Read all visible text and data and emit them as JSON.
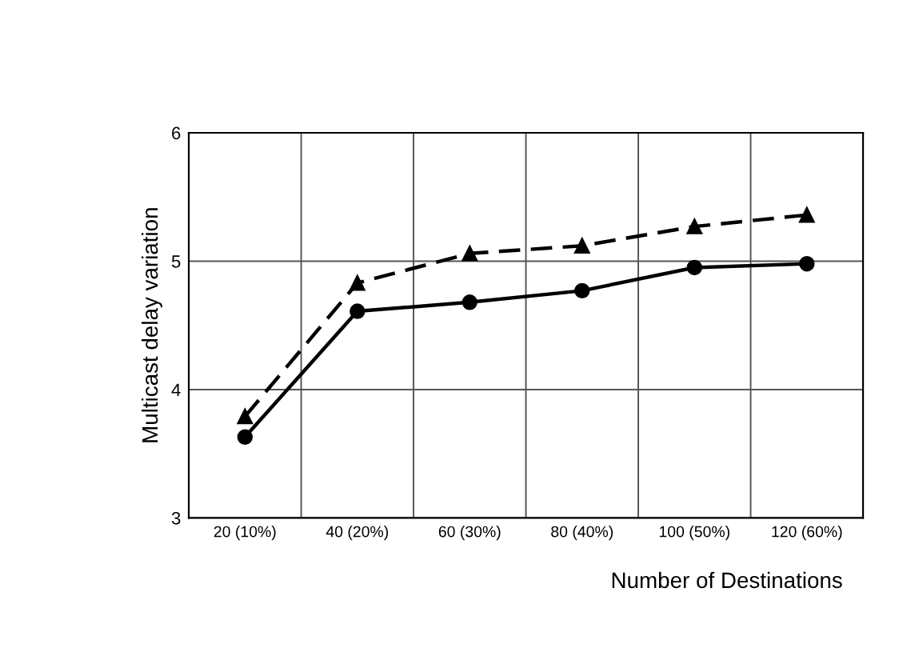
{
  "chart_data": {
    "type": "line",
    "xlabel": "Number of Destinations",
    "ylabel": "Multicast delay variation",
    "categories": [
      "20 (10%)",
      "40 (20%)",
      "60 (30%)",
      "80 (40%)",
      "100 (50%)",
      "120 (60%)"
    ],
    "series": [
      {
        "color": "#000000",
        "marker": "triangle",
        "line_style": "dashed",
        "values": [
          3.79,
          4.83,
          5.06,
          5.12,
          5.27,
          5.36
        ]
      },
      {
        "color": "#000000",
        "marker": "circle",
        "line_style": "solid",
        "values": [
          3.63,
          4.61,
          4.68,
          4.77,
          4.95,
          4.98
        ]
      }
    ],
    "ylim": [
      3,
      6
    ],
    "yticks": [
      3,
      4,
      5,
      6
    ],
    "grid": true,
    "legend": false
  }
}
